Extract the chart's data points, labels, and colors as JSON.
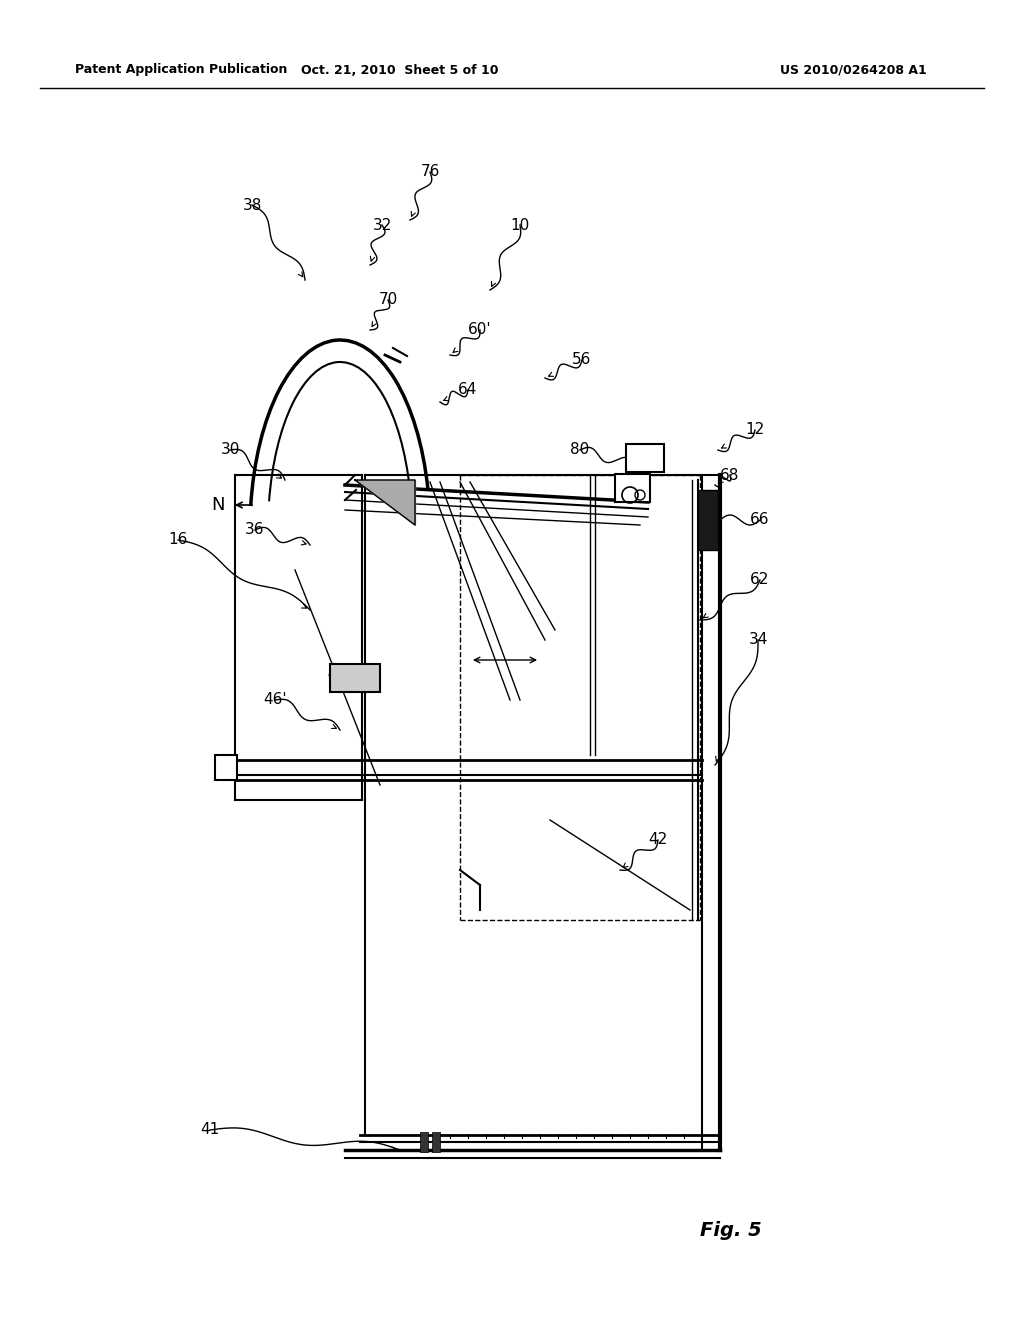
{
  "background_color": "#ffffff",
  "header_left": "Patent Application Publication",
  "header_mid": "Oct. 21, 2010  Sheet 5 of 10",
  "header_right": "US 2010/0264208 A1",
  "figure_label": "Fig. 5"
}
